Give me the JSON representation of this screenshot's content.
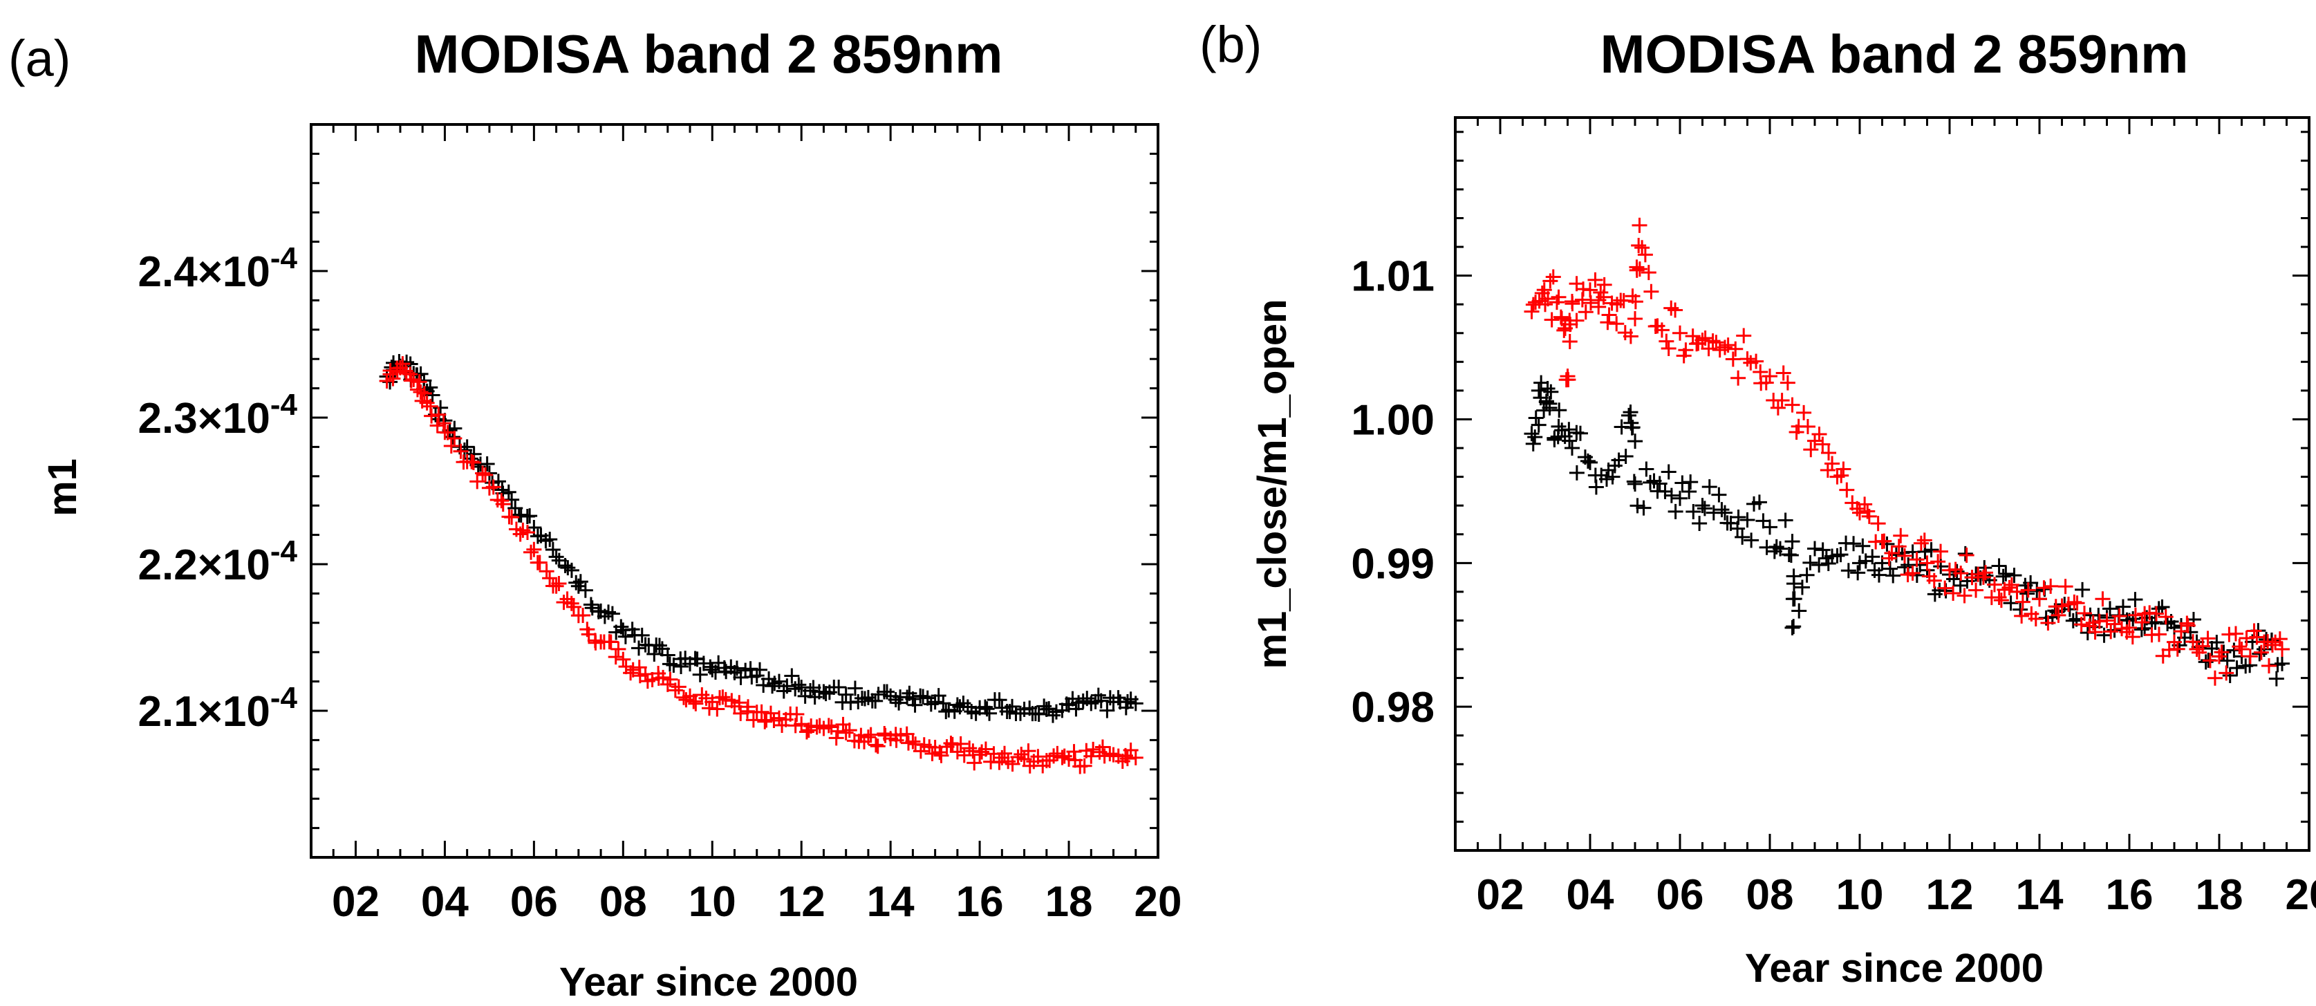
{
  "panels": [
    {
      "label": "(a)",
      "title": "MODISA band 2 859nm",
      "xlabel": "Year since 2000",
      "ylabel": "m1",
      "x_ticks": [
        "02",
        "04",
        "06",
        "08",
        "10",
        "12",
        "14",
        "16",
        "18",
        "20"
      ],
      "y_ticks": [
        {
          "mantissa": "2.1",
          "exp": "-4"
        },
        {
          "mantissa": "2.2",
          "exp": "-4"
        },
        {
          "mantissa": "2.3",
          "exp": "-4"
        },
        {
          "mantissa": "2.4",
          "exp": "-4"
        }
      ]
    },
    {
      "label": "(b)",
      "title": "MODISA band 2 859nm",
      "xlabel": "Year since 2000",
      "ylabel": "m1_close/m1_open",
      "x_ticks": [
        "02",
        "04",
        "06",
        "08",
        "10",
        "12",
        "14",
        "16",
        "18",
        "20"
      ],
      "y_ticks": [
        "0.98",
        "0.99",
        "1.00",
        "1.01"
      ]
    }
  ],
  "colors": {
    "series_black": "#000000",
    "series_red": "#ff0000"
  },
  "chart_data": [
    {
      "type": "scatter",
      "title": "MODISA band 2 859nm",
      "xlabel": "Year since 2000",
      "ylabel": "m1",
      "xlim": [
        1,
        20
      ],
      "ylim": [
        0.0002,
        0.00025
      ],
      "grid": false,
      "series": [
        {
          "name": "black",
          "color": "#000000",
          "marker": "+",
          "x": [
            2.7,
            3.0,
            3.3,
            3.6,
            4.0,
            4.5,
            5.0,
            5.5,
            6.0,
            6.5,
            7.0,
            7.5,
            8.0,
            8.5,
            9.0,
            9.5,
            10.0,
            10.5,
            11.0,
            11.5,
            12.0,
            12.5,
            13.0,
            13.5,
            14.0,
            14.5,
            15.0,
            15.5,
            16.0,
            16.5,
            17.0,
            17.5,
            18.0,
            18.5,
            19.0,
            19.5
          ],
          "y": [
            0.0002328,
            0.0002335,
            0.000233,
            0.0002318,
            0.0002298,
            0.000228,
            0.0002262,
            0.0002244,
            0.0002225,
            0.0002205,
            0.0002185,
            0.0002168,
            0.0002155,
            0.0002145,
            0.0002138,
            0.0002132,
            0.0002128,
            0.0002126,
            0.0002124,
            0.000212,
            0.0002116,
            0.0002113,
            0.0002111,
            0.0002109,
            0.000211,
            0.0002108,
            0.0002106,
            0.0002104,
            0.0002102,
            0.0002102,
            0.0002101,
            0.0002101,
            0.0002104,
            0.0002105,
            0.0002106,
            0.0002105
          ]
        },
        {
          "name": "red",
          "color": "#ff0000",
          "marker": "+",
          "x": [
            2.7,
            3.0,
            3.3,
            3.6,
            4.0,
            4.5,
            5.0,
            5.5,
            6.0,
            6.5,
            7.0,
            7.5,
            8.0,
            8.5,
            9.0,
            9.5,
            10.0,
            10.5,
            11.0,
            11.5,
            12.0,
            12.5,
            13.0,
            13.5,
            14.0,
            14.5,
            15.0,
            15.5,
            16.0,
            16.5,
            17.0,
            17.5,
            18.0,
            18.5,
            19.0,
            19.5
          ],
          "y": [
            0.0002325,
            0.0002334,
            0.0002326,
            0.000231,
            0.000229,
            0.000227,
            0.0002252,
            0.0002232,
            0.000221,
            0.0002185,
            0.0002165,
            0.0002147,
            0.0002135,
            0.0002125,
            0.0002118,
            0.000211,
            0.0002106,
            0.0002103,
            0.0002099,
            0.0002095,
            0.0002091,
            0.0002088,
            0.0002085,
            0.0002082,
            0.0002081,
            0.0002079,
            0.0002075,
            0.0002072,
            0.000207,
            0.0002068,
            0.0002067,
            0.0002066,
            0.0002067,
            0.0002069,
            0.000207,
            0.0002068
          ]
        }
      ]
    },
    {
      "type": "scatter",
      "title": "MODISA band 2 859nm",
      "xlabel": "Year since 2000",
      "ylabel": "m1_close/m1_open",
      "xlim": [
        1,
        20
      ],
      "ylim": [
        0.97,
        1.021
      ],
      "grid": false,
      "series": [
        {
          "name": "black",
          "color": "#000000",
          "marker": "+",
          "x": [
            2.7,
            2.9,
            3.1,
            3.3,
            3.6,
            4.0,
            4.5,
            5.0,
            5.5,
            6.0,
            6.5,
            7.0,
            7.5,
            8.0,
            8.5,
            9.0,
            9.5,
            10.0,
            10.5,
            11.0,
            11.5,
            12.0,
            12.5,
            13.0,
            13.5,
            14.0,
            14.5,
            15.0,
            15.5,
            16.0,
            16.5,
            17.0,
            17.5,
            18.0,
            18.5,
            19.0,
            19.4,
            4.9,
            8.5
          ],
          "y": [
            0.999,
            1.0015,
            1.0008,
            0.9995,
            0.998,
            0.997,
            0.996,
            0.9955,
            0.995,
            0.9945,
            0.994,
            0.9935,
            0.993,
            0.9925,
            0.9915,
            0.991,
            0.9905,
            0.99,
            0.99,
            0.9897,
            0.9895,
            0.9892,
            0.989,
            0.9885,
            0.988,
            0.9875,
            0.987,
            0.9865,
            0.9862,
            0.986,
            0.9858,
            0.9855,
            0.9845,
            0.9835,
            0.9835,
            0.984,
            0.983,
            1.0005,
            0.9855
          ]
        },
        {
          "name": "red",
          "color": "#ff0000",
          "marker": "+",
          "x": [
            2.7,
            3.0,
            3.3,
            3.6,
            4.0,
            4.3,
            4.6,
            5.0,
            5.5,
            6.0,
            6.5,
            7.0,
            7.5,
            8.0,
            8.5,
            9.0,
            9.5,
            10.0,
            10.5,
            11.0,
            11.5,
            12.0,
            12.5,
            13.0,
            13.5,
            14.0,
            14.5,
            15.0,
            15.5,
            16.0,
            16.5,
            17.0,
            17.5,
            18.0,
            18.5,
            19.0,
            19.4,
            5.1,
            3.5
          ],
          "y": [
            1.0075,
            1.008,
            1.0085,
            1.0082,
            1.009,
            1.0085,
            1.008,
            1.007,
            1.0065,
            1.006,
            1.0055,
            1.005,
            1.0042,
            1.003,
            1.001,
            0.9985,
            0.996,
            0.9935,
            0.9915,
            0.9905,
            0.99,
            0.9895,
            0.989,
            0.9885,
            0.988,
            0.9875,
            0.987,
            0.9865,
            0.986,
            0.9855,
            0.985,
            0.9845,
            0.984,
            0.9835,
            0.984,
            0.9845,
            0.984,
            1.0135,
            1.003
          ]
        }
      ]
    }
  ]
}
